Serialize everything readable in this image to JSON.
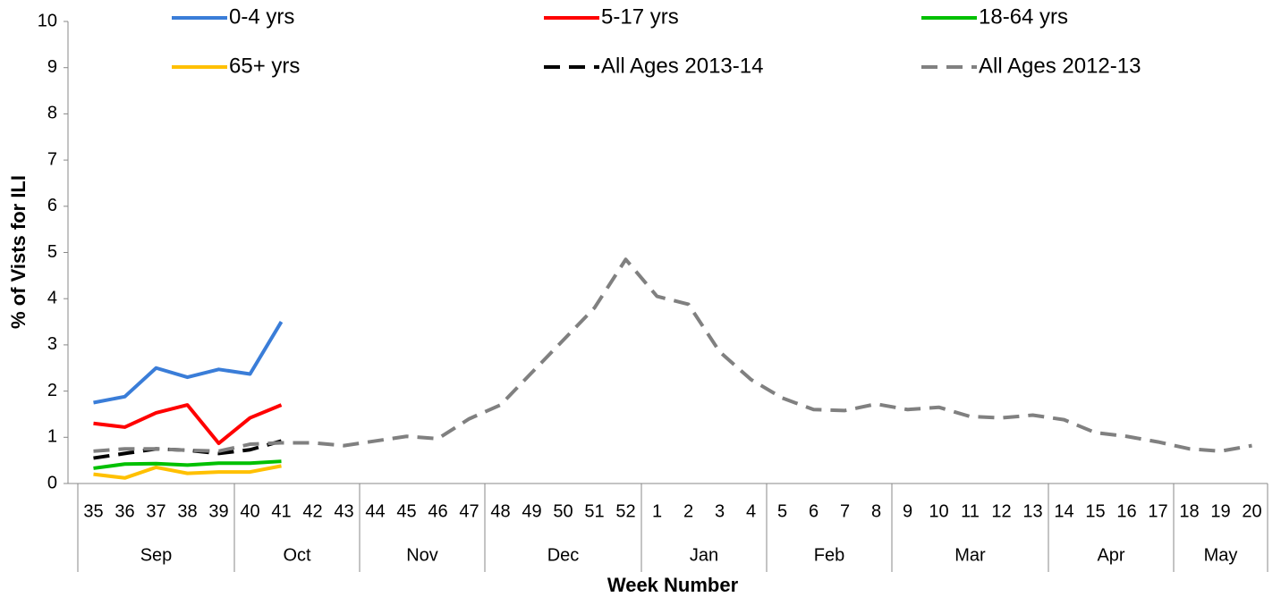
{
  "chart_data": {
    "type": "line",
    "y_label": "% of Vists for ILI",
    "x_label": "Week Number",
    "categories": [
      "35",
      "36",
      "37",
      "38",
      "39",
      "40",
      "41",
      "42",
      "43",
      "44",
      "45",
      "46",
      "47",
      "48",
      "49",
      "50",
      "51",
      "52",
      "1",
      "2",
      "3",
      "4",
      "5",
      "6",
      "7",
      "8",
      "9",
      "10",
      "11",
      "12",
      "13",
      "14",
      "15",
      "16",
      "17",
      "18",
      "19",
      "20"
    ],
    "months": [
      "Sep",
      "Sep",
      "Sep",
      "Sep",
      "Sep",
      "Oct",
      "Oct",
      "Oct",
      "Oct",
      "Nov",
      "Nov",
      "Nov",
      "Nov",
      "Dec",
      "Dec",
      "Dec",
      "Dec",
      "Dec",
      "Jan",
      "Jan",
      "Jan",
      "Jan",
      "Feb",
      "Feb",
      "Feb",
      "Feb",
      "Mar",
      "Mar",
      "Mar",
      "Mar",
      "Mar",
      "Apr",
      "Apr",
      "Apr",
      "Apr",
      "May",
      "May",
      "May"
    ],
    "ylim": [
      0,
      10
    ],
    "yticks": [
      0,
      1,
      2,
      3,
      4,
      5,
      6,
      7,
      8,
      9,
      10
    ],
    "series": [
      {
        "name": "0-4 yrs",
        "color": "#3a7dd8",
        "dashed": false,
        "values": [
          1.75,
          1.88,
          2.5,
          2.3,
          2.47,
          2.37,
          3.5,
          null,
          null,
          null,
          null,
          null,
          null,
          null,
          null,
          null,
          null,
          null,
          null,
          null,
          null,
          null,
          null,
          null,
          null,
          null,
          null,
          null,
          null,
          null,
          null,
          null,
          null,
          null,
          null,
          null,
          null,
          null
        ]
      },
      {
        "name": "5-17 yrs",
        "color": "#ff0000",
        "dashed": false,
        "values": [
          1.3,
          1.22,
          1.53,
          1.7,
          0.87,
          1.42,
          1.7,
          null,
          null,
          null,
          null,
          null,
          null,
          null,
          null,
          null,
          null,
          null,
          null,
          null,
          null,
          null,
          null,
          null,
          null,
          null,
          null,
          null,
          null,
          null,
          null,
          null,
          null,
          null,
          null,
          null,
          null,
          null
        ]
      },
      {
        "name": "18-64 yrs",
        "color": "#00c000",
        "dashed": false,
        "values": [
          0.33,
          0.42,
          0.43,
          0.4,
          0.44,
          0.44,
          0.48,
          null,
          null,
          null,
          null,
          null,
          null,
          null,
          null,
          null,
          null,
          null,
          null,
          null,
          null,
          null,
          null,
          null,
          null,
          null,
          null,
          null,
          null,
          null,
          null,
          null,
          null,
          null,
          null,
          null,
          null,
          null
        ]
      },
      {
        "name": "65+ yrs",
        "color": "#ffc000",
        "dashed": false,
        "values": [
          0.2,
          0.12,
          0.35,
          0.22,
          0.25,
          0.25,
          0.38,
          null,
          null,
          null,
          null,
          null,
          null,
          null,
          null,
          null,
          null,
          null,
          null,
          null,
          null,
          null,
          null,
          null,
          null,
          null,
          null,
          null,
          null,
          null,
          null,
          null,
          null,
          null,
          null,
          null,
          null,
          null
        ]
      },
      {
        "name": "All Ages 2013-14",
        "color": "#000000",
        "dashed": true,
        "values": [
          0.55,
          0.65,
          0.75,
          0.72,
          0.65,
          0.73,
          0.92,
          null,
          null,
          null,
          null,
          null,
          null,
          null,
          null,
          null,
          null,
          null,
          null,
          null,
          null,
          null,
          null,
          null,
          null,
          null,
          null,
          null,
          null,
          null,
          null,
          null,
          null,
          null,
          null,
          null,
          null,
          null
        ]
      },
      {
        "name": "All Ages 2012-13",
        "color": "#808080",
        "dashed": true,
        "values": [
          0.7,
          0.75,
          0.75,
          0.72,
          0.7,
          0.85,
          0.88,
          0.88,
          0.82,
          0.92,
          1.02,
          0.97,
          1.4,
          1.7,
          2.4,
          3.1,
          3.8,
          4.85,
          4.05,
          3.88,
          2.85,
          2.25,
          1.85,
          1.6,
          1.58,
          1.72,
          1.6,
          1.65,
          1.45,
          1.42,
          1.48,
          1.38,
          1.1,
          1.02,
          0.9,
          0.75,
          0.7,
          0.82
        ]
      }
    ]
  }
}
